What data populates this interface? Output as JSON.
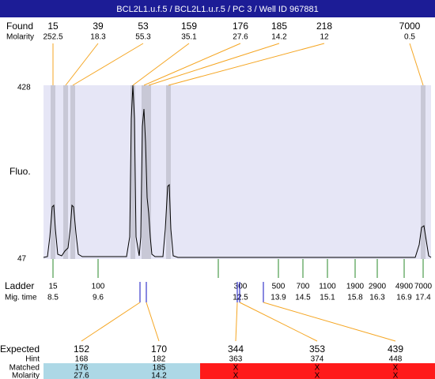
{
  "title": "BCL2L1.u.f.5 / BCL2L1.u.r.5 / PC 3 / Well ID 967881",
  "found": {
    "label": "Found",
    "molarity_label": "Molarity",
    "items": [
      {
        "size": 15,
        "molarity": 252.5
      },
      {
        "size": 39,
        "molarity": 18.3
      },
      {
        "size": 53,
        "molarity": 55.3
      },
      {
        "size": 159,
        "molarity": 35.1
      },
      {
        "size": 176,
        "molarity": 27.6
      },
      {
        "size": 185,
        "molarity": 14.2
      },
      {
        "size": 218,
        "molarity": 12
      },
      {
        "size": 7000,
        "molarity": 0.5
      }
    ]
  },
  "fluo": {
    "label": "Fluo.",
    "yticks": [
      428,
      47
    ]
  },
  "ladder": {
    "label": "Ladder",
    "mig_label": "Mig. time",
    "items": [
      {
        "size": 15,
        "time": 8.5
      },
      {
        "size": 100,
        "time": 9.6
      },
      {
        "size": 300,
        "time": 12.5
      },
      {
        "size": 500,
        "time": 13.9
      },
      {
        "size": 700,
        "time": 14.5
      },
      {
        "size": 1100,
        "time": 15.1
      },
      {
        "size": 1900,
        "time": 15.8
      },
      {
        "size": 2900,
        "time": 16.3
      },
      {
        "size": 4900,
        "time": 16.9
      },
      {
        "size": 7000,
        "time": 17.4
      }
    ]
  },
  "expected": {
    "label": "Expected",
    "hint_label": "Hint",
    "matched_label": "Matched",
    "molarity_label": "Molarity",
    "items": [
      {
        "expected": 152,
        "hint": 168,
        "matched": 176,
        "molarity": 27.6
      },
      {
        "expected": 170,
        "hint": 182,
        "matched": 185,
        "molarity": 14.2
      },
      {
        "expected": 344,
        "hint": 363,
        "matched": "X",
        "molarity": "X"
      },
      {
        "expected": 353,
        "hint": 374,
        "matched": "X",
        "molarity": "X"
      },
      {
        "expected": 439,
        "hint": 448,
        "matched": "X",
        "molarity": "X"
      }
    ]
  }
}
